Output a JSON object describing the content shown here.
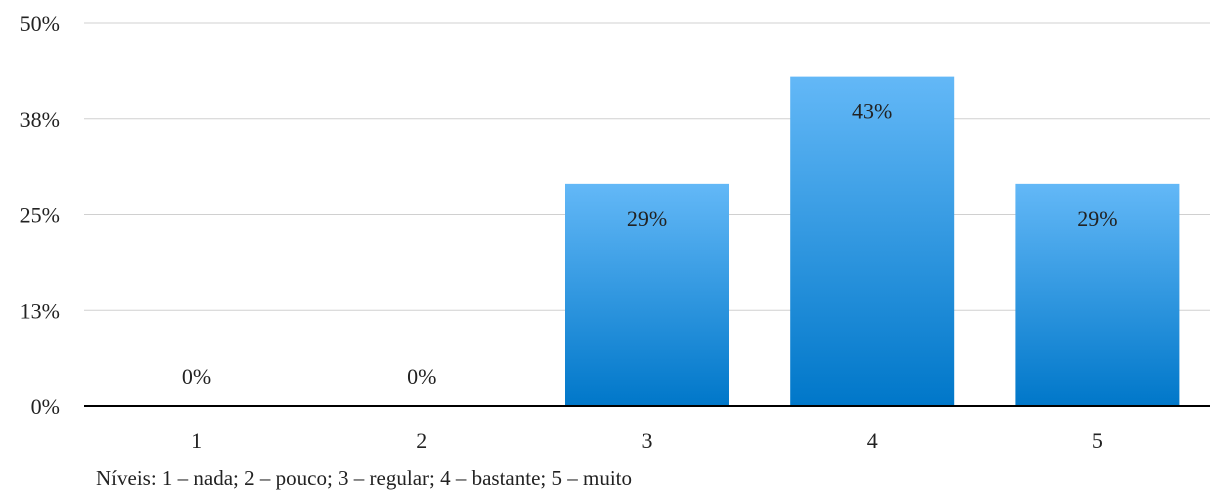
{
  "chart_data": {
    "type": "bar",
    "categories": [
      "1",
      "2",
      "3",
      "4",
      "5"
    ],
    "values": [
      0,
      0,
      29,
      43,
      29
    ],
    "data_labels": [
      "0%",
      "0%",
      "29%",
      "43%",
      "29%"
    ],
    "ylim": [
      0,
      50
    ],
    "yticks": [
      0,
      12.5,
      25,
      37.5,
      50
    ],
    "ytick_labels": [
      "0%",
      "13%",
      "25%",
      "38%",
      "50%"
    ],
    "grid": true,
    "bar_gradient": [
      "#63b8f7",
      "#0077c9"
    ],
    "note": "Níveis: 1 – nada; 2 – pouco; 3 – regular; 4 – bastante; 5 – muito"
  }
}
